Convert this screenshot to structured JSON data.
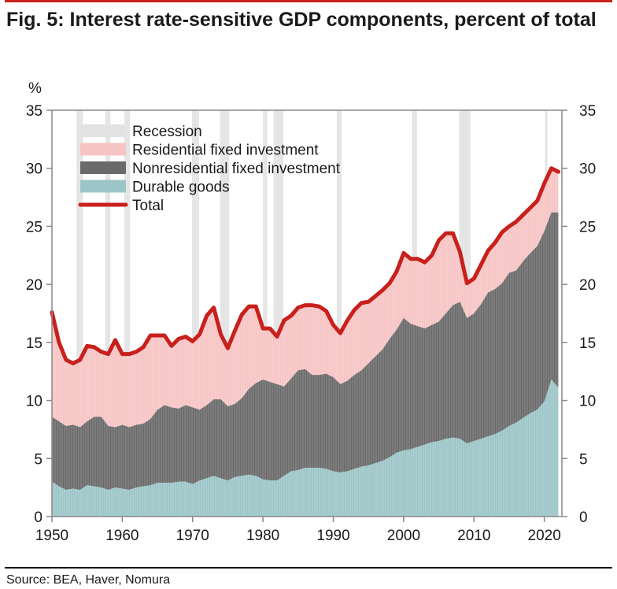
{
  "title": "Fig. 5: Interest rate-sensitive GDP components, percent of total",
  "source": "Source: BEA, Haver, Nomura",
  "colors": {
    "accent": "#c8201c",
    "recession": "#e3e3e3",
    "residential": "#f7c4c4",
    "nonresidential": "#6a6a6a",
    "durable": "#9cc5c7",
    "total": "#c8201c"
  },
  "chart_data": {
    "type": "area",
    "title": "Interest rate-sensitive GDP components, percent of total",
    "ylabel": "%",
    "xlabel": "",
    "xlim": [
      1950,
      2022.5
    ],
    "ylim": [
      0,
      35
    ],
    "yticks": [
      0,
      5,
      10,
      15,
      20,
      25,
      30,
      35
    ],
    "xticks": [
      1950,
      1960,
      1970,
      1980,
      1990,
      2000,
      2010,
      2020
    ],
    "grid": false,
    "dual_y_axis": true,
    "legend_position": "top-left",
    "legend": [
      {
        "key": "recession",
        "label": "Recession",
        "kind": "band"
      },
      {
        "key": "residential",
        "label": "Residential fixed investment",
        "kind": "area"
      },
      {
        "key": "nonresidential",
        "label": "Nonresidential fixed investment",
        "kind": "area"
      },
      {
        "key": "durable",
        "label": "Durable goods",
        "kind": "area"
      },
      {
        "key": "total",
        "label": "Total",
        "kind": "line"
      }
    ],
    "recessions": [
      [
        1953.5,
        1954.4
      ],
      [
        1957.6,
        1958.3
      ],
      [
        1960.3,
        1961.1
      ],
      [
        1969.9,
        1970.9
      ],
      [
        1973.9,
        1975.2
      ],
      [
        1980.0,
        1980.6
      ],
      [
        1981.5,
        1982.9
      ],
      [
        1990.5,
        1991.2
      ],
      [
        2001.2,
        2001.9
      ],
      [
        2007.9,
        2009.5
      ],
      [
        2020.1,
        2020.4
      ]
    ],
    "x": [
      1950,
      1951,
      1952,
      1953,
      1954,
      1955,
      1956,
      1957,
      1958,
      1959,
      1960,
      1961,
      1962,
      1963,
      1964,
      1965,
      1966,
      1967,
      1968,
      1969,
      1970,
      1971,
      1972,
      1973,
      1974,
      1975,
      1976,
      1977,
      1978,
      1979,
      1980,
      1981,
      1982,
      1983,
      1984,
      1985,
      1986,
      1987,
      1988,
      1989,
      1990,
      1991,
      1992,
      1993,
      1994,
      1995,
      1996,
      1997,
      1998,
      1999,
      2000,
      2001,
      2002,
      2003,
      2004,
      2005,
      2006,
      2007,
      2008,
      2009,
      2010,
      2011,
      2012,
      2013,
      2014,
      2015,
      2016,
      2017,
      2018,
      2019,
      2020,
      2021,
      2022
    ],
    "series": [
      {
        "name": "Durable goods",
        "values": [
          3.0,
          2.6,
          2.3,
          2.4,
          2.3,
          2.7,
          2.6,
          2.5,
          2.3,
          2.5,
          2.4,
          2.3,
          2.5,
          2.6,
          2.7,
          2.9,
          2.9,
          2.9,
          3.0,
          3.0,
          2.8,
          3.1,
          3.3,
          3.5,
          3.3,
          3.1,
          3.4,
          3.5,
          3.6,
          3.5,
          3.2,
          3.1,
          3.1,
          3.5,
          3.9,
          4.0,
          4.2,
          4.2,
          4.2,
          4.1,
          3.9,
          3.8,
          3.9,
          4.1,
          4.3,
          4.4,
          4.6,
          4.8,
          5.1,
          5.5,
          5.7,
          5.8,
          6.0,
          6.2,
          6.4,
          6.5,
          6.7,
          6.8,
          6.7,
          6.3,
          6.5,
          6.7,
          6.9,
          7.1,
          7.4,
          7.8,
          8.1,
          8.5,
          8.9,
          9.2,
          9.9,
          11.8,
          11.1
        ]
      },
      {
        "name": "Nonresidential fixed investment",
        "values": [
          5.6,
          5.6,
          5.5,
          5.5,
          5.4,
          5.5,
          6.0,
          6.1,
          5.5,
          5.2,
          5.5,
          5.4,
          5.4,
          5.4,
          5.7,
          6.3,
          6.7,
          6.5,
          6.3,
          6.6,
          6.6,
          6.1,
          6.3,
          6.6,
          6.8,
          6.4,
          6.3,
          6.7,
          7.4,
          8.0,
          8.6,
          8.5,
          8.3,
          7.7,
          8.0,
          8.6,
          8.5,
          8.0,
          8.0,
          8.2,
          8.1,
          7.6,
          7.8,
          8.1,
          8.3,
          8.8,
          9.2,
          9.6,
          10.2,
          10.6,
          11.4,
          10.8,
          10.4,
          10.0,
          10.1,
          10.3,
          10.8,
          11.4,
          11.8,
          10.8,
          11.0,
          11.6,
          12.4,
          12.5,
          12.7,
          13.2,
          13.1,
          13.5,
          13.8,
          14.1,
          14.7,
          14.4,
          15.1
        ]
      },
      {
        "name": "Residential fixed investment",
        "values": [
          9.0,
          6.8,
          5.7,
          5.3,
          5.8,
          6.5,
          6.0,
          5.6,
          6.2,
          7.5,
          6.1,
          6.3,
          6.3,
          6.6,
          7.2,
          6.4,
          6.0,
          5.3,
          6.0,
          5.9,
          5.7,
          6.5,
          7.7,
          7.9,
          5.6,
          5.0,
          6.3,
          7.2,
          7.1,
          6.6,
          4.4,
          4.6,
          4.1,
          5.7,
          5.4,
          5.4,
          5.5,
          6.0,
          5.9,
          5.4,
          4.5,
          4.4,
          5.2,
          5.6,
          5.8,
          5.3,
          5.2,
          5.1,
          4.8,
          5.0,
          5.6,
          5.6,
          5.8,
          5.7,
          6.0,
          7.0,
          6.9,
          6.2,
          4.3,
          3.0,
          3.0,
          3.4,
          3.6,
          4.0,
          4.4,
          4.0,
          4.2,
          4.0,
          3.9,
          3.9,
          4.1,
          3.8,
          3.5
        ]
      },
      {
        "name": "Total",
        "values": [
          17.6,
          15.0,
          13.5,
          13.2,
          13.5,
          14.7,
          14.6,
          14.2,
          14.0,
          15.2,
          14.0,
          14.0,
          14.2,
          14.6,
          15.6,
          15.6,
          15.6,
          14.7,
          15.3,
          15.5,
          15.1,
          15.7,
          17.3,
          18.0,
          15.7,
          14.5,
          16.0,
          17.4,
          18.1,
          18.1,
          16.2,
          16.2,
          15.5,
          16.9,
          17.3,
          18.0,
          18.2,
          18.2,
          18.1,
          17.7,
          16.5,
          15.8,
          16.9,
          17.8,
          18.4,
          18.5,
          19.0,
          19.5,
          20.1,
          21.1,
          22.7,
          22.2,
          22.2,
          21.9,
          22.5,
          23.8,
          24.4,
          24.4,
          22.8,
          20.1,
          20.5,
          21.7,
          22.9,
          23.6,
          24.5,
          25.0,
          25.4,
          26.0,
          26.6,
          27.2,
          28.7,
          30.0,
          29.7
        ]
      }
    ]
  }
}
